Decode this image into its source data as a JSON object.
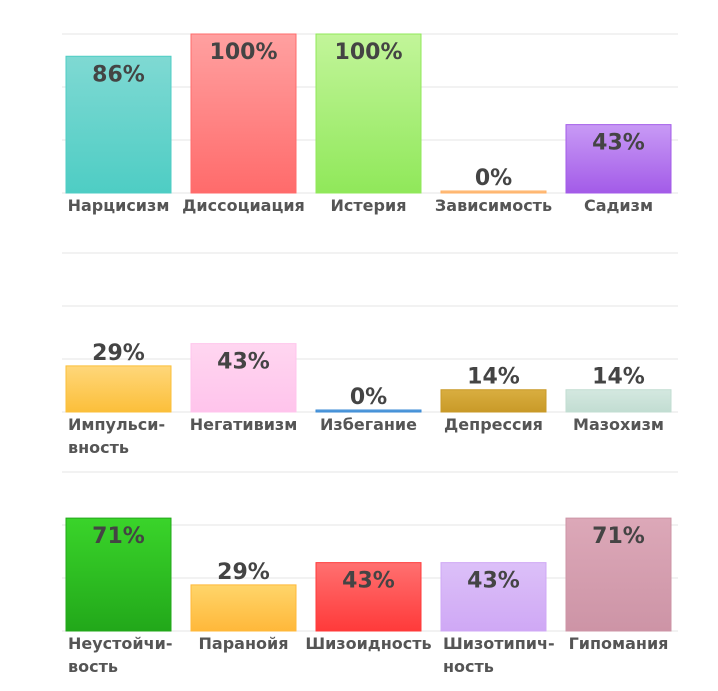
{
  "chart_data": [
    {
      "type": "bar",
      "categories": [
        "Нарцисизм",
        "Диссоциация",
        "Истерия",
        "Зависимость",
        "Садизм"
      ],
      "category_lines": [
        [
          "Нарцисизм"
        ],
        [
          "Диссоциация"
        ],
        [
          "Истерия"
        ],
        [
          "Зависимость"
        ],
        [
          "Садизм"
        ]
      ],
      "values": [
        86,
        100,
        100,
        0,
        43
      ],
      "data_labels": [
        "86%",
        "100%",
        "100%",
        "0%",
        "43%"
      ],
      "colors": [
        [
          "#7fd9d3",
          "#4ecdc4"
        ],
        [
          "#ffa0a0",
          "#ff6b6b"
        ],
        [
          "#c2f59a",
          "#90e85a"
        ],
        [
          "#ffcf99",
          "#ffb066"
        ],
        [
          "#c89af5",
          "#a35be8"
        ]
      ],
      "ylim": [
        0,
        100
      ],
      "grid": true
    },
    {
      "type": "bar",
      "categories": [
        "Импульсивность",
        "Негативизм",
        "Избегание",
        "Депрессия",
        "Мазохизм"
      ],
      "category_lines": [
        [
          "Импульси-",
          "вность"
        ],
        [
          "Негативизм"
        ],
        [
          "Избегание"
        ],
        [
          "Депрессия"
        ],
        [
          "Мазохизм"
        ]
      ],
      "values": [
        29,
        43,
        0,
        14,
        14
      ],
      "data_labels": [
        "29%",
        "43%",
        "0%",
        "14%",
        "14%"
      ],
      "colors": [
        [
          "#ffd77a",
          "#fbbf3a"
        ],
        [
          "#ffd6f0",
          "#ffc4ec"
        ],
        [
          "#7ab3e8",
          "#3a8ad4"
        ],
        [
          "#d9ae40",
          "#c99a28"
        ],
        [
          "#d4e8e0",
          "#c2ddd2"
        ]
      ],
      "ylim": [
        0,
        100
      ],
      "grid": true
    },
    {
      "type": "bar",
      "categories": [
        "Неустойчивость",
        "Паранойя",
        "Шизоидность",
        "Шизотипичность",
        "Гипомания"
      ],
      "category_lines": [
        [
          "Неустойчи-",
          "вость"
        ],
        [
          "Паранойя"
        ],
        [
          "Шизоидность"
        ],
        [
          "Шизотипич-",
          "ность"
        ],
        [
          "Гипомания"
        ]
      ],
      "values": [
        71,
        29,
        43,
        43,
        71
      ],
      "data_labels": [
        "71%",
        "29%",
        "43%",
        "43%",
        "71%"
      ],
      "colors": [
        [
          "#3ad42a",
          "#22a81a"
        ],
        [
          "#ffd56a",
          "#ffb83a"
        ],
        [
          "#ff7070",
          "#ff3a3a"
        ],
        [
          "#dcc0f8",
          "#cfa8f5"
        ],
        [
          "#dca8b8",
          "#cd94a6"
        ]
      ],
      "ylim": [
        0,
        100
      ],
      "grid": true
    }
  ]
}
